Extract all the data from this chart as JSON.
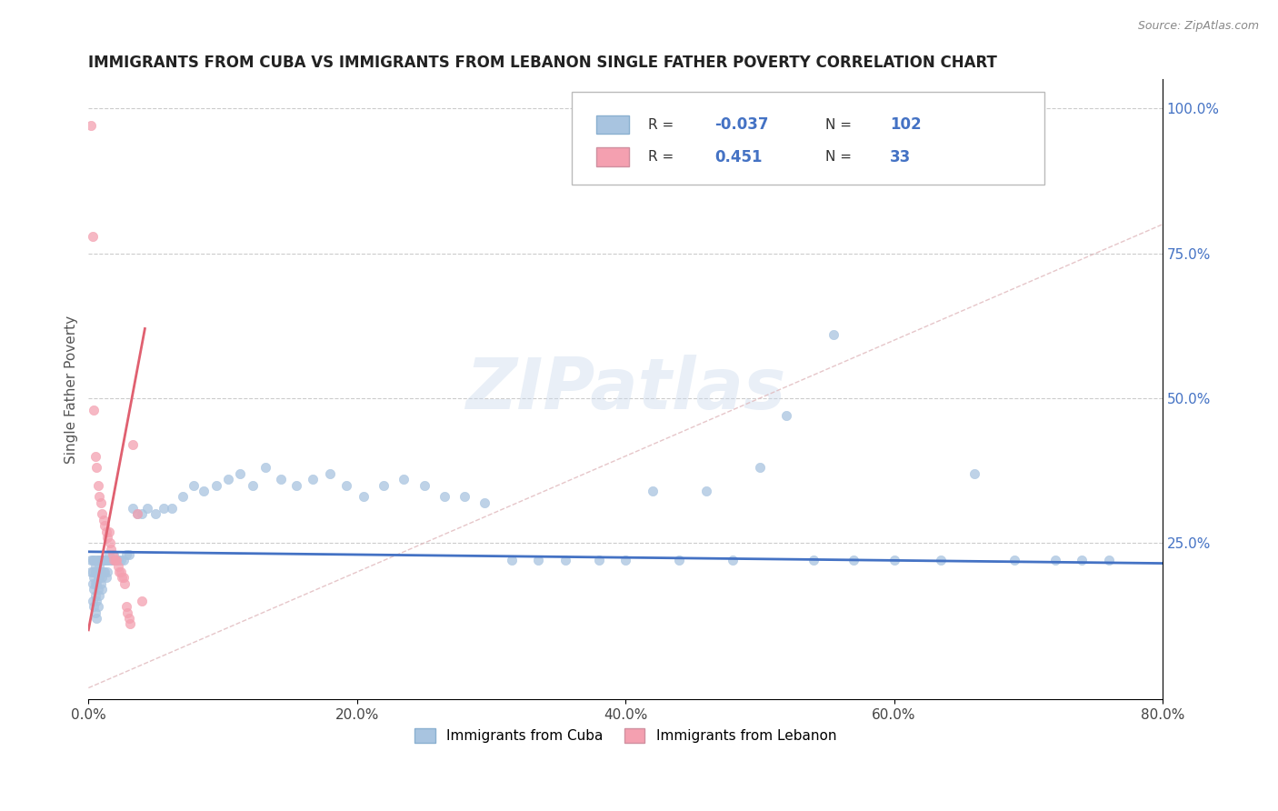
{
  "title": "IMMIGRANTS FROM CUBA VS IMMIGRANTS FROM LEBANON SINGLE FATHER POVERTY CORRELATION CHART",
  "source": "Source: ZipAtlas.com",
  "ylabel": "Single Father Poverty",
  "xlim": [
    0.0,
    0.8
  ],
  "ylim": [
    -0.02,
    1.05
  ],
  "xtick_labels": [
    "0.0%",
    "20.0%",
    "40.0%",
    "60.0%",
    "80.0%"
  ],
  "xtick_vals": [
    0.0,
    0.2,
    0.4,
    0.6,
    0.8
  ],
  "ytick_labels": [
    "25.0%",
    "50.0%",
    "75.0%",
    "100.0%"
  ],
  "ytick_vals": [
    0.25,
    0.5,
    0.75,
    1.0
  ],
  "cuba_color": "#a8c4e0",
  "lebanon_color": "#f4a0b0",
  "cuba_line_color": "#4472c4",
  "lebanon_line_color": "#e06070",
  "diagonal_color": "#e0b8bc",
  "R_cuba": -0.037,
  "N_cuba": 102,
  "R_lebanon": 0.451,
  "N_lebanon": 33,
  "cuba_scatter": [
    [
      0.002,
      0.22
    ],
    [
      0.002,
      0.2
    ],
    [
      0.003,
      0.22
    ],
    [
      0.003,
      0.18
    ],
    [
      0.003,
      0.2
    ],
    [
      0.003,
      0.15
    ],
    [
      0.004,
      0.22
    ],
    [
      0.004,
      0.19
    ],
    [
      0.004,
      0.17
    ],
    [
      0.004,
      0.14
    ],
    [
      0.005,
      0.21
    ],
    [
      0.005,
      0.2
    ],
    [
      0.005,
      0.18
    ],
    [
      0.005,
      0.16
    ],
    [
      0.005,
      0.13
    ],
    [
      0.006,
      0.22
    ],
    [
      0.006,
      0.2
    ],
    [
      0.006,
      0.18
    ],
    [
      0.006,
      0.15
    ],
    [
      0.006,
      0.12
    ],
    [
      0.007,
      0.22
    ],
    [
      0.007,
      0.2
    ],
    [
      0.007,
      0.19
    ],
    [
      0.007,
      0.17
    ],
    [
      0.007,
      0.14
    ],
    [
      0.008,
      0.22
    ],
    [
      0.008,
      0.21
    ],
    [
      0.008,
      0.19
    ],
    [
      0.008,
      0.16
    ],
    [
      0.009,
      0.22
    ],
    [
      0.009,
      0.2
    ],
    [
      0.009,
      0.18
    ],
    [
      0.01,
      0.22
    ],
    [
      0.01,
      0.19
    ],
    [
      0.01,
      0.17
    ],
    [
      0.011,
      0.22
    ],
    [
      0.011,
      0.2
    ],
    [
      0.012,
      0.22
    ],
    [
      0.012,
      0.2
    ],
    [
      0.013,
      0.22
    ],
    [
      0.013,
      0.19
    ],
    [
      0.014,
      0.22
    ],
    [
      0.014,
      0.2
    ],
    [
      0.015,
      0.23
    ],
    [
      0.016,
      0.22
    ],
    [
      0.017,
      0.22
    ],
    [
      0.018,
      0.22
    ],
    [
      0.019,
      0.23
    ],
    [
      0.02,
      0.22
    ],
    [
      0.022,
      0.22
    ],
    [
      0.024,
      0.22
    ],
    [
      0.026,
      0.22
    ],
    [
      0.028,
      0.23
    ],
    [
      0.03,
      0.23
    ],
    [
      0.033,
      0.31
    ],
    [
      0.036,
      0.3
    ],
    [
      0.04,
      0.3
    ],
    [
      0.044,
      0.31
    ],
    [
      0.05,
      0.3
    ],
    [
      0.056,
      0.31
    ],
    [
      0.062,
      0.31
    ],
    [
      0.07,
      0.33
    ],
    [
      0.078,
      0.35
    ],
    [
      0.086,
      0.34
    ],
    [
      0.095,
      0.35
    ],
    [
      0.104,
      0.36
    ],
    [
      0.113,
      0.37
    ],
    [
      0.122,
      0.35
    ],
    [
      0.132,
      0.38
    ],
    [
      0.143,
      0.36
    ],
    [
      0.155,
      0.35
    ],
    [
      0.167,
      0.36
    ],
    [
      0.18,
      0.37
    ],
    [
      0.192,
      0.35
    ],
    [
      0.205,
      0.33
    ],
    [
      0.22,
      0.35
    ],
    [
      0.235,
      0.36
    ],
    [
      0.25,
      0.35
    ],
    [
      0.265,
      0.33
    ],
    [
      0.28,
      0.33
    ],
    [
      0.295,
      0.32
    ],
    [
      0.315,
      0.22
    ],
    [
      0.335,
      0.22
    ],
    [
      0.355,
      0.22
    ],
    [
      0.38,
      0.22
    ],
    [
      0.4,
      0.22
    ],
    [
      0.42,
      0.34
    ],
    [
      0.44,
      0.22
    ],
    [
      0.46,
      0.34
    ],
    [
      0.48,
      0.22
    ],
    [
      0.5,
      0.38
    ],
    [
      0.52,
      0.47
    ],
    [
      0.54,
      0.22
    ],
    [
      0.555,
      0.61
    ],
    [
      0.57,
      0.22
    ],
    [
      0.6,
      0.22
    ],
    [
      0.635,
      0.22
    ],
    [
      0.66,
      0.37
    ],
    [
      0.69,
      0.22
    ],
    [
      0.72,
      0.22
    ],
    [
      0.74,
      0.22
    ],
    [
      0.76,
      0.22
    ]
  ],
  "lebanon_scatter": [
    [
      0.002,
      0.97
    ],
    [
      0.003,
      0.78
    ],
    [
      0.004,
      0.48
    ],
    [
      0.005,
      0.4
    ],
    [
      0.006,
      0.38
    ],
    [
      0.007,
      0.35
    ],
    [
      0.008,
      0.33
    ],
    [
      0.009,
      0.32
    ],
    [
      0.01,
      0.3
    ],
    [
      0.011,
      0.29
    ],
    [
      0.012,
      0.28
    ],
    [
      0.013,
      0.27
    ],
    [
      0.014,
      0.26
    ],
    [
      0.015,
      0.27
    ],
    [
      0.016,
      0.25
    ],
    [
      0.017,
      0.24
    ],
    [
      0.018,
      0.23
    ],
    [
      0.019,
      0.22
    ],
    [
      0.02,
      0.22
    ],
    [
      0.021,
      0.22
    ],
    [
      0.022,
      0.21
    ],
    [
      0.023,
      0.2
    ],
    [
      0.024,
      0.2
    ],
    [
      0.025,
      0.19
    ],
    [
      0.026,
      0.19
    ],
    [
      0.027,
      0.18
    ],
    [
      0.028,
      0.14
    ],
    [
      0.029,
      0.13
    ],
    [
      0.03,
      0.12
    ],
    [
      0.031,
      0.11
    ],
    [
      0.033,
      0.42
    ],
    [
      0.036,
      0.3
    ],
    [
      0.04,
      0.15
    ]
  ],
  "watermark": "ZIPatlas",
  "background_color": "#ffffff",
  "grid_color": "#cccccc"
}
